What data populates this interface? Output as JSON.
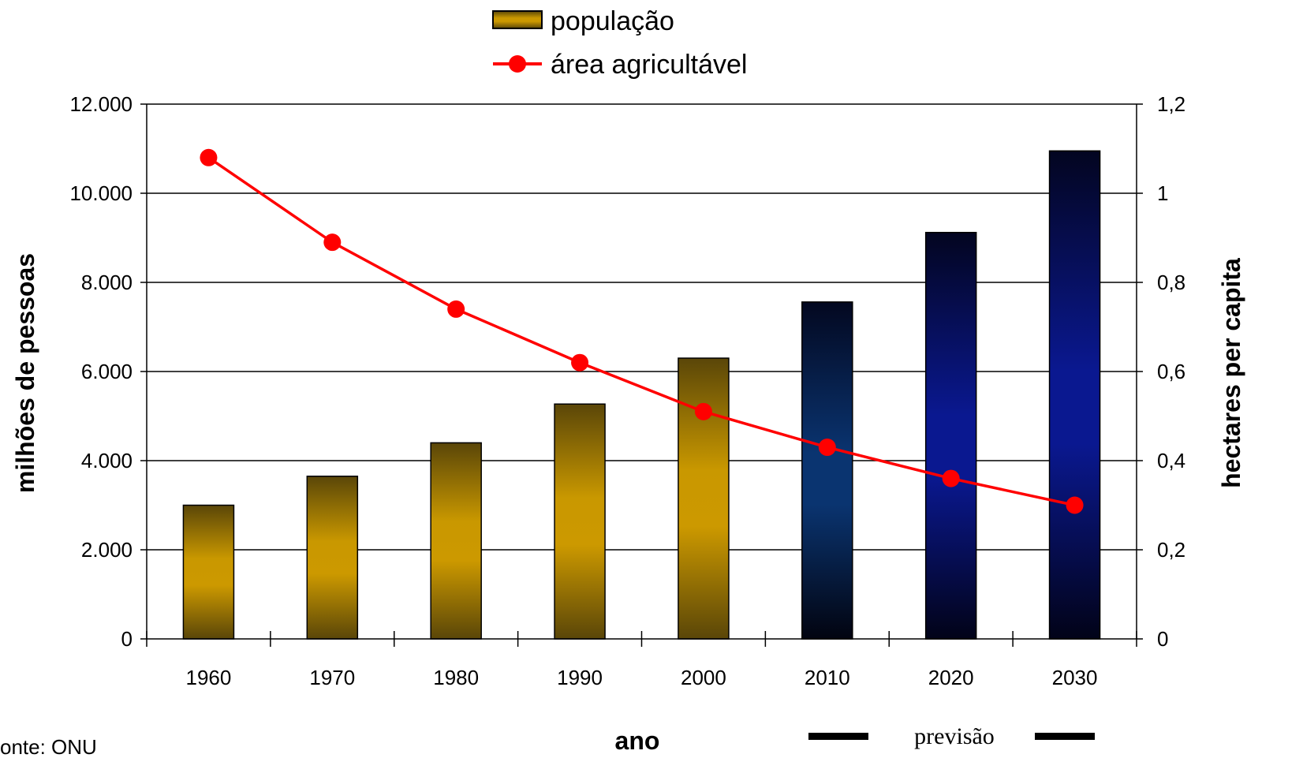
{
  "chart_data": {
    "type": "bar",
    "categories": [
      "1960",
      "1970",
      "1980",
      "1990",
      "2000",
      "2010",
      "2020",
      "2030"
    ],
    "series": [
      {
        "name": "população",
        "kind": "bar",
        "axis": "left",
        "values": [
          3000,
          3650,
          4400,
          5270,
          6300,
          7560,
          9120,
          10950
        ],
        "forecast_from_index": 5
      },
      {
        "name": "área agricultável",
        "kind": "line",
        "axis": "right",
        "color": "#ff0000",
        "values": [
          1.08,
          0.89,
          0.74,
          0.62,
          0.51,
          0.43,
          0.36,
          0.3
        ]
      }
    ],
    "xlabel": "ano",
    "ylabel": "milhões de pessoas",
    "y2label": "hectares per capita",
    "ylim": [
      0,
      12000
    ],
    "y2lim": [
      0,
      1.2
    ],
    "yticks": [
      "0",
      "2.000",
      "4.000",
      "6.000",
      "8.000",
      "10.000",
      "12.000"
    ],
    "y2ticks": [
      "0",
      "0,2",
      "0,4",
      "0,6",
      "0,8",
      "1",
      "1,2"
    ],
    "grid": true,
    "legend_position": "top-center",
    "forecast_label": "previsão",
    "source_note": "onte: ONU",
    "colors": {
      "historical_bar_mid": "#cc9900",
      "historical_bar_edge": "#5a4608",
      "forecast_bar_mid": "#0a1a8a",
      "forecast_bar_edge": "#02031a",
      "line": "#ff0000"
    }
  }
}
